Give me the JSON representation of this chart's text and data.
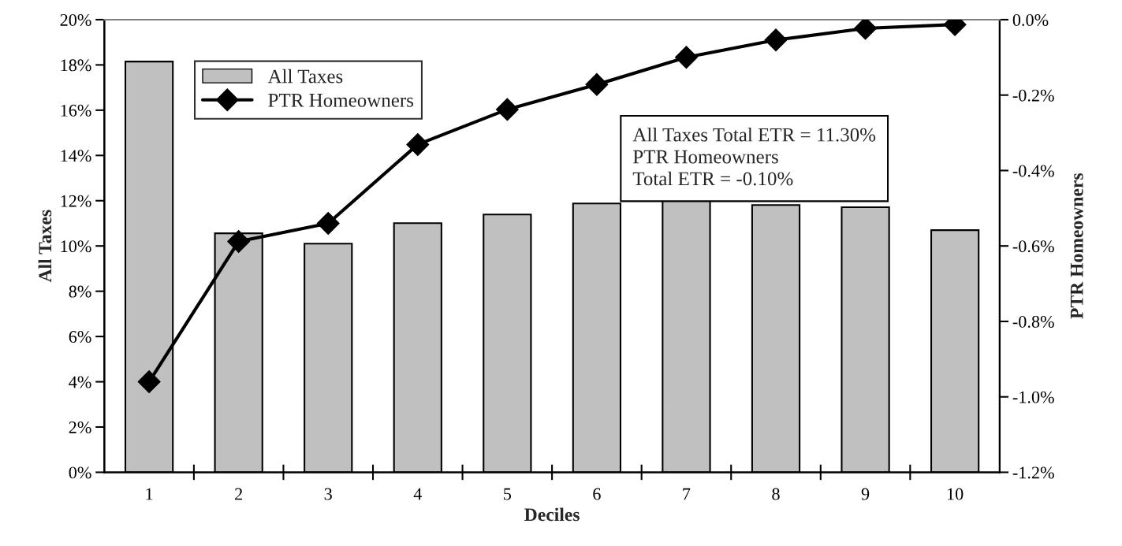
{
  "chart_data": {
    "type": "bar",
    "xlabel": "Deciles",
    "ylabel": "All Taxes",
    "y2label": "PTR Homeowners",
    "categories": [
      "1",
      "2",
      "3",
      "4",
      "5",
      "6",
      "7",
      "8",
      "9",
      "10"
    ],
    "series": [
      {
        "name": "All Taxes",
        "color": "#c0c0c0",
        "values": [
          18.15,
          10.56,
          10.1,
          11.01,
          11.39,
          11.88,
          11.99,
          11.81,
          11.71,
          10.7
        ]
      },
      {
        "name": "PTR Homeowners",
        "type": "line",
        "axis": "y2",
        "color": "#000000",
        "marker": "diamond",
        "values": [
          -0.96,
          -0.588,
          -0.54,
          -0.331,
          -0.238,
          -0.172,
          -0.1,
          -0.054,
          -0.023,
          -0.013
        ]
      }
    ],
    "ylim": [
      0,
      20
    ],
    "yticks": [
      {
        "value": 0,
        "label": "0%"
      },
      {
        "value": 2,
        "label": "2%"
      },
      {
        "value": 4,
        "label": "4%"
      },
      {
        "value": 6,
        "label": "6%"
      },
      {
        "value": 8,
        "label": "8%"
      },
      {
        "value": 10,
        "label": "10%"
      },
      {
        "value": 12,
        "label": "12%"
      },
      {
        "value": 14,
        "label": "14%"
      },
      {
        "value": 16,
        "label": "16%"
      },
      {
        "value": 18,
        "label": "18%"
      },
      {
        "value": 20,
        "label": "20%"
      }
    ],
    "y2lim": [
      -1.2,
      0
    ],
    "y2ticks": [
      {
        "value": -1.2,
        "label": "-1.2%"
      },
      {
        "value": -1.0,
        "label": "-1.0%"
      },
      {
        "value": -0.8,
        "label": "-0.8%"
      },
      {
        "value": -0.6,
        "label": "-0.6%"
      },
      {
        "value": -0.4,
        "label": "-0.4%"
      },
      {
        "value": -0.2,
        "label": "-0.2%"
      },
      {
        "value": 0,
        "label": "0.0%"
      }
    ],
    "annotations": [
      "All Taxes Total ETR = 11.30%",
      "PTR Homeowners",
      "Total ETR = -0.10%"
    ],
    "legend": "top left",
    "grid": false
  }
}
